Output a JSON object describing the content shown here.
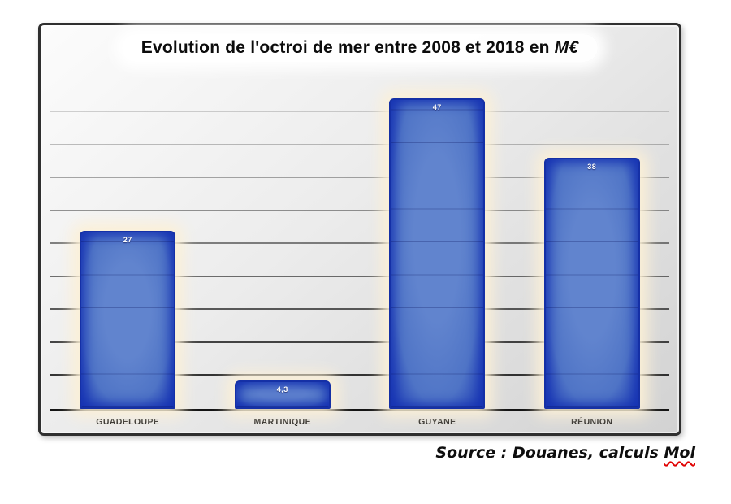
{
  "chart_data": {
    "type": "bar",
    "title": "Evolution de l'octroi de mer entre 2008 et 2018 en M€",
    "title_prefix": "Evolution de l'octroi de mer entre 2008 et 2018 en ",
    "title_unit": "M€",
    "categories": [
      "GUADELOUPE",
      "MARTINIQUE",
      "GUYANE",
      "RÉUNION"
    ],
    "values": [
      27,
      4.3,
      47,
      38
    ],
    "value_labels": [
      "27",
      "4,3",
      "47",
      "38"
    ],
    "xlabel": "",
    "ylabel": "",
    "ylim": [
      0,
      50
    ],
    "gridlines": [
      5,
      10,
      15,
      20,
      25,
      30,
      35,
      40,
      45
    ],
    "grid": true,
    "legend_position": "none"
  },
  "footer": {
    "source_prefix": "Source : Douanes, calculs ",
    "source_flagged": "Mol"
  },
  "colors": {
    "bar_fill": "#4f74c6",
    "bar_fill_light": "#6184ce",
    "bar_edge": "#1734b3",
    "bar_border": "#1530a6",
    "bar_glow": "#fcf0d6",
    "value_text": "#ffffff",
    "frame_border": "#2f2f2f",
    "baseline": "#141414"
  }
}
